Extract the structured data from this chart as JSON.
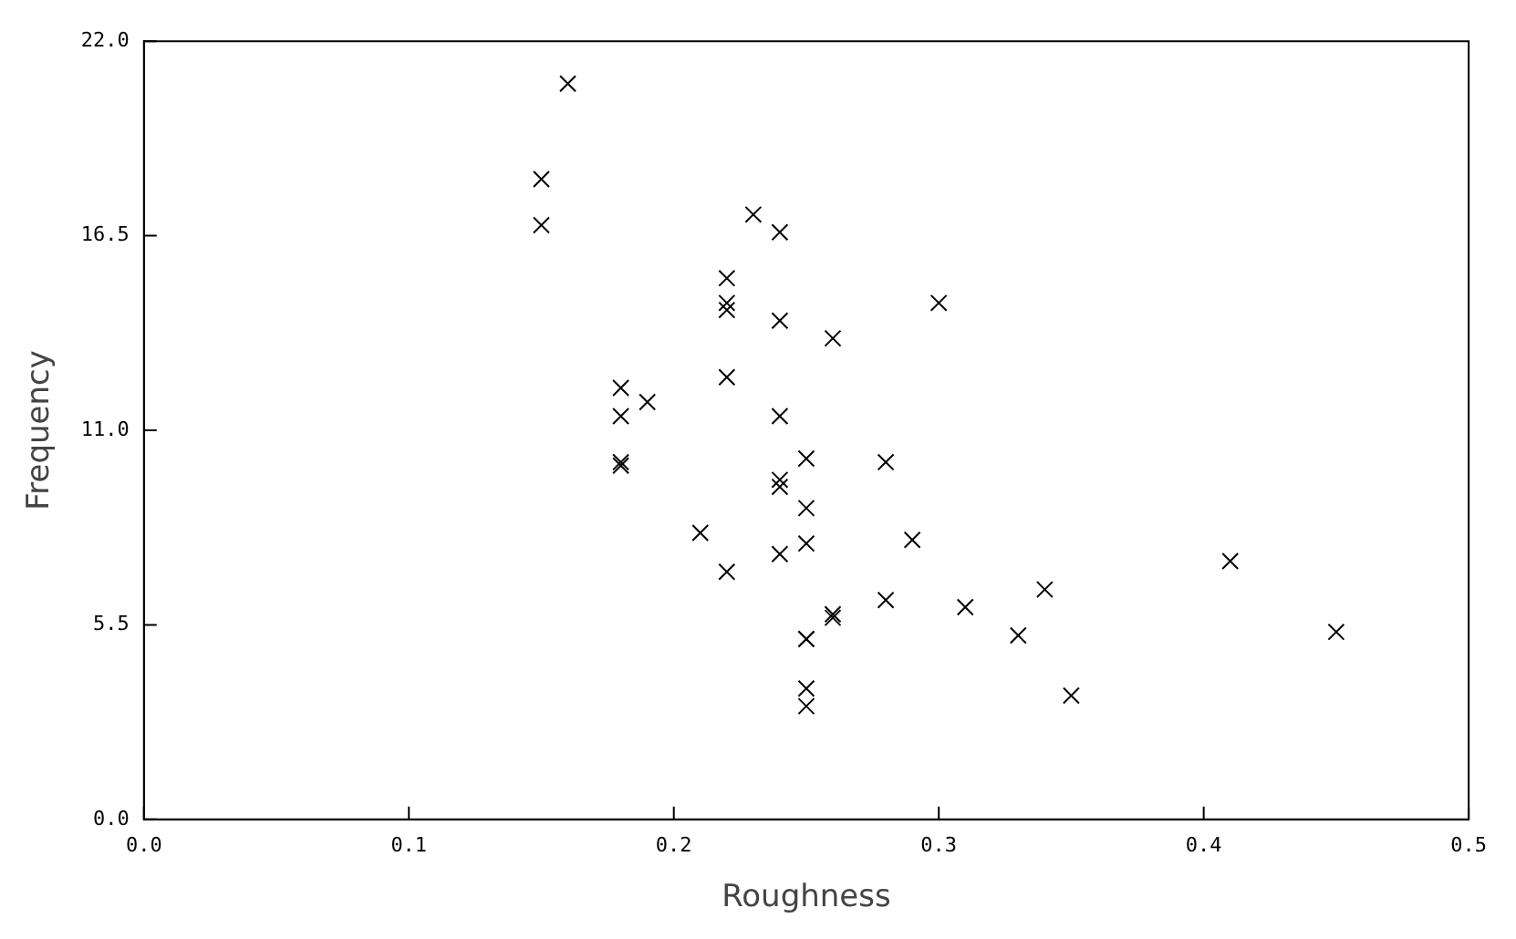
{
  "chart_data": {
    "type": "scatter",
    "xlabel": "Roughness",
    "ylabel": "Frequency",
    "marker": "cross",
    "grid": false,
    "legend": false,
    "xlim": [
      0,
      0.5
    ],
    "ylim": [
      0,
      22
    ],
    "xticks": [
      {
        "value": 0,
        "label": "0.0"
      },
      0.1,
      0.2,
      0.3,
      0.4,
      0.5
    ],
    "yticks": [
      {
        "value": 0,
        "label": "0.0"
      },
      5.5,
      {
        "value": 11,
        "label": "11.0"
      },
      16.5,
      {
        "value": 22,
        "label": "22.0"
      }
    ],
    "series": [
      {
        "color": "#000000",
        "x": [
          0.16,
          0.15,
          0.15,
          0.23,
          0.24,
          0.22,
          0.22,
          0.22,
          0.3,
          0.24,
          0.26,
          0.22,
          0.18,
          0.19,
          0.18,
          0.24,
          0.18,
          0.18,
          0.25,
          0.28,
          0.24,
          0.24,
          0.25,
          0.21,
          0.25,
          0.29,
          0.24,
          0.22,
          0.41,
          0.34,
          0.28,
          0.31,
          0.26,
          0.26,
          0.25,
          0.25,
          0.33,
          0.45,
          0.35,
          0.25,
          0.25
        ],
        "values": [
          20.8,
          18.1,
          16.8,
          17.1,
          16.6,
          15.3,
          14.6,
          14.4,
          14.6,
          14.1,
          13.6,
          12.5,
          12.2,
          11.8,
          11.4,
          11.4,
          10.1,
          10.0,
          10.2,
          10.1,
          9.6,
          9.4,
          8.8,
          8.1,
          7.8,
          7.9,
          7.5,
          7.0,
          7.3,
          6.5,
          6.2,
          6.0,
          5.8,
          5.7,
          5.1,
          5.1,
          5.2,
          5.3,
          3.5,
          3.7,
          3.2
        ]
      }
    ]
  }
}
